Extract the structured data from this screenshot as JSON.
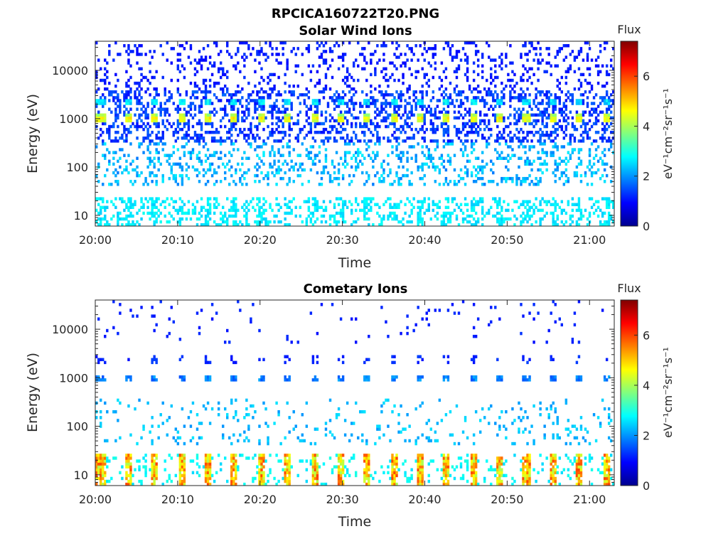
{
  "figure_title": "RPCICA160722T20.PNG",
  "chart_data": [
    {
      "type": "heatmap",
      "title": "Solar Wind Ions",
      "xlabel": "Time",
      "ylabel": "Energy (eV)",
      "x_ticks": [
        "20:00",
        "20:10",
        "20:20",
        "20:30",
        "20:40",
        "20:50",
        "21:00"
      ],
      "x_range_minutes": [
        0,
        63
      ],
      "y_scale": "log",
      "y_ticks": [
        {
          "value": 10,
          "label": "10"
        },
        {
          "value": 100,
          "label": "100"
        },
        {
          "value": 1000,
          "label": "1000"
        },
        {
          "value": 10000,
          "label": "10000"
        }
      ],
      "y_range_eV": [
        6,
        40000
      ],
      "colorbar": {
        "title": "Flux",
        "unit": "eV⁻¹cm⁻²sr⁻¹s⁻¹",
        "range": [
          0,
          7.4
        ],
        "ticks": [
          0,
          2,
          4,
          6
        ]
      },
      "features": {
        "peak_energy_eV": 1000,
        "peak_flux": 4.5,
        "secondary_energy_eV": 2200,
        "secondary_flux": 2.6,
        "pulse_period_minutes": 3.22,
        "pulse_count": 20,
        "low_energy_band_eV": [
          6,
          25
        ],
        "low_energy_flux": 3.0
      }
    },
    {
      "type": "heatmap",
      "title": "Cometary Ions",
      "xlabel": "Time",
      "ylabel": "Energy (eV)",
      "x_ticks": [
        "20:00",
        "20:10",
        "20:20",
        "20:30",
        "20:40",
        "20:50",
        "21:00"
      ],
      "x_range_minutes": [
        0,
        63
      ],
      "y_scale": "log",
      "y_ticks": [
        {
          "value": 10,
          "label": "10"
        },
        {
          "value": 100,
          "label": "100"
        },
        {
          "value": 1000,
          "label": "1000"
        },
        {
          "value": 10000,
          "label": "10000"
        }
      ],
      "y_range_eV": [
        6,
        40000
      ],
      "colorbar": {
        "title": "Flux",
        "unit": "eV⁻¹cm⁻²sr⁻¹s⁻¹",
        "range": [
          0,
          7.4
        ],
        "ticks": [
          0,
          2,
          4,
          6
        ]
      },
      "features": {
        "peak_energy_eV": 1000,
        "peak_flux": 2.0,
        "low_energy_band_eV": [
          6,
          28
        ],
        "low_energy_flux": 5.2,
        "low_energy_max_flux": 6.5,
        "pulse_period_minutes": 3.22,
        "pulse_count": 20
      }
    }
  ]
}
